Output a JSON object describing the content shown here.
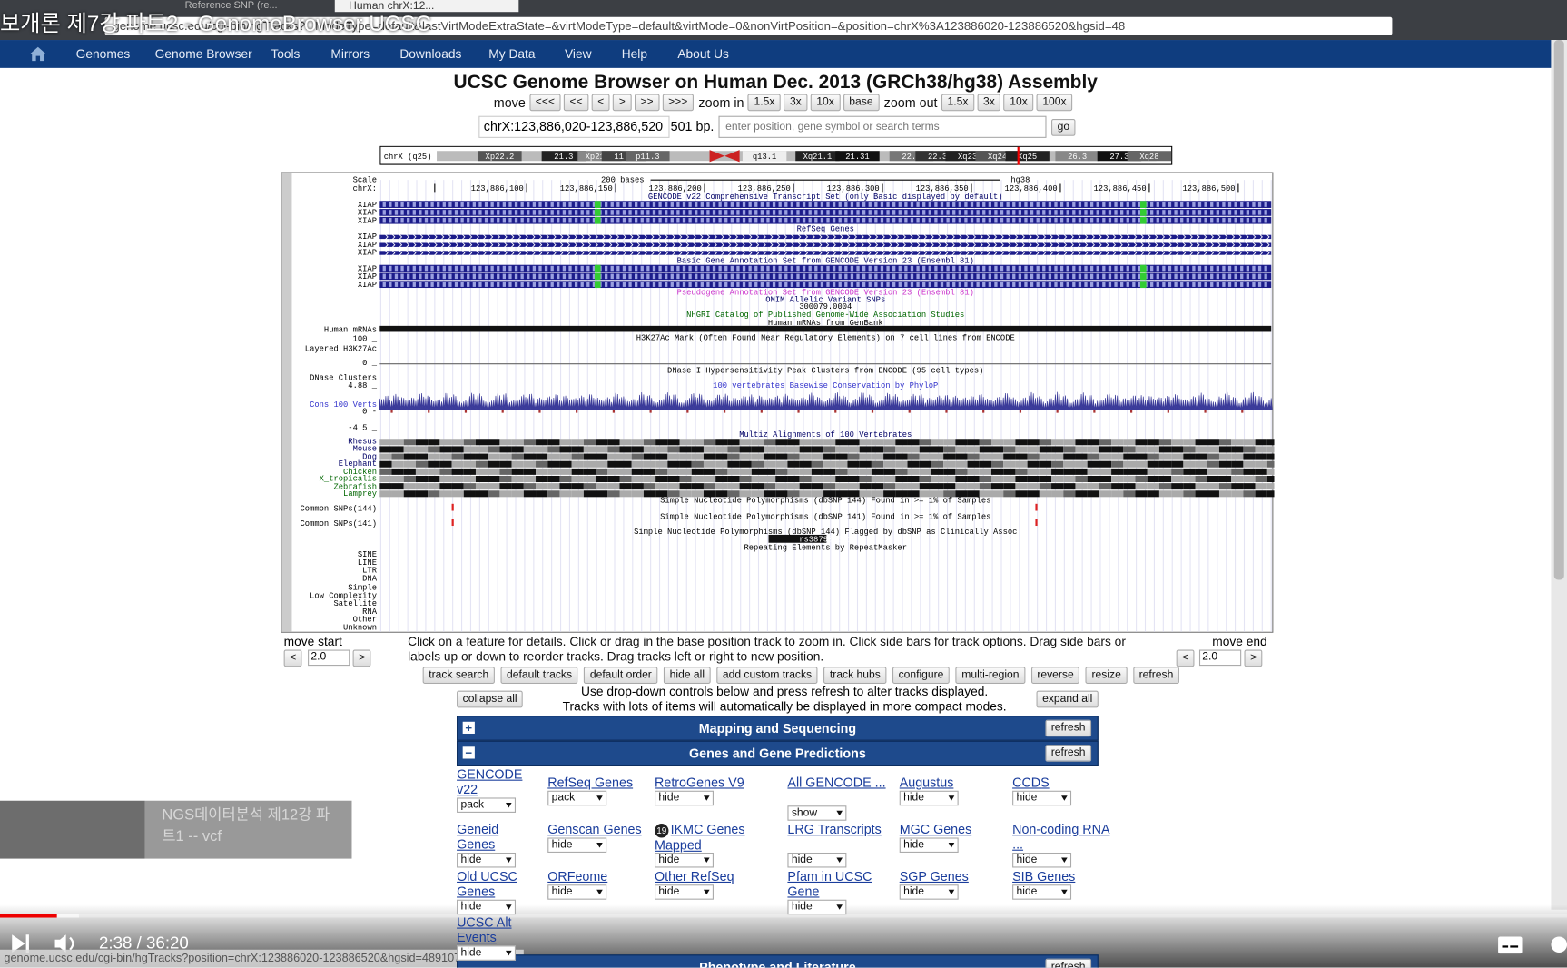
{
  "video_title": "보개론 제7강 파트2 - GenomeBrowser UCSC",
  "browser": {
    "tab": "Human chrX:12...",
    "tab_prev": "Reference SNP (re...",
    "url": "genome.ucsc.edu/cgi-bin/hgTracks?...ModeType=default&lastVirtModeExtraState=&virtModeType=default&virtMode=0&nonVirtPosition=&position=chrX%3A123886020-123886520&hgsid=48",
    "status_url": "genome.ucsc.edu/cgi-bin/hgTracks?position=chrX:123886020-123886520&hgsid=4891075..."
  },
  "nav": [
    "Genomes",
    "Genome Browser",
    "Tools",
    "Mirrors",
    "Downloads",
    "My Data",
    "View",
    "Help",
    "About Us"
  ],
  "heading": "UCSC Genome Browser on Human Dec. 2013 (GRCh38/hg38) Assembly",
  "move": {
    "label": "move",
    "buttons": [
      "<<<",
      "<<",
      "<",
      ">",
      ">>",
      ">>>"
    ]
  },
  "zoom_in": {
    "label": "zoom in",
    "buttons": [
      "1.5x",
      "3x",
      "10x",
      "base"
    ]
  },
  "zoom_out": {
    "label": "zoom out",
    "buttons": [
      "1.5x",
      "3x",
      "10x",
      "100x"
    ]
  },
  "position": "chrX:123,886,020-123,886,520",
  "size": "501 bp.",
  "search_placeholder": "enter position, gene symbol or search terms",
  "go": "go",
  "ideogram": {
    "chrom": "chrX (q25)",
    "bands": [
      "Xp22.2",
      "21.3",
      "Xp21.1",
      "11.4",
      "p11.3",
      "q13.1",
      "Xq21.1",
      "21.31",
      "22.1",
      "22.3",
      "Xq23",
      "Xq24",
      "Xq25",
      "26.3",
      "27.3",
      "Xq28"
    ]
  },
  "tracks": {
    "scale_text": "200 bases",
    "assembly": "hg38",
    "positions": [
      "123,886,100",
      "123,886,150",
      "123,886,200",
      "123,886,250",
      "123,886,300",
      "123,886,350",
      "123,886,400",
      "123,886,450",
      "123,886,500"
    ],
    "left_labels": [
      "Scale",
      "chrX:",
      "XIAP",
      "XIAP",
      "XIAP",
      "XIAP",
      "XIAP",
      "XIAP",
      "XIAP",
      "XIAP",
      "XIAP",
      "Human mRNAs",
      "100 _",
      "Layered H3K27Ac",
      "0 _",
      "DNase Clusters",
      "4.88 _",
      "Cons 100 Verts",
      "0 -",
      "-4.5 _",
      "Rhesus",
      "Mouse",
      "Dog",
      "Elephant",
      "Chicken",
      "X_tropicalis",
      "Zebrafish",
      "Lamprey",
      "Common SNPs(144)",
      "Common SNPs(141)",
      "SINE",
      "LINE",
      "LTR",
      "DNA",
      "Simple",
      "Low Complexity",
      "Satellite",
      "RNA",
      "Other",
      "Unknown"
    ],
    "center_labels": [
      "GENCODE v22 Comprehensive Transcript Set (only Basic displayed by default)",
      "RefSeq Genes",
      "Basic Gene Annotation Set from GENCODE Version 23 (Ensembl 81)",
      "Pseudogene Annotation Set from GENCODE Version 23 (Ensembl 81)",
      "OMIM Allelic Variant SNPs",
      "300079.0004",
      "NHGRI Catalog of Published Genome-Wide Association Studies",
      "Human mRNAs from GenBank",
      "H3K27Ac Mark (Often Found Near Regulatory Elements) on 7 cell lines from ENCODE",
      "DNase I Hypersensitivity Peak Clusters from ENCODE (95 cell types)",
      "100 vertebrates Basewise Conservation by PhyloP",
      "Multiz Alignments of 100 Vertebrates",
      "Simple Nucleotide Polymorphisms (dbSNP 144) Found in >= 1% of Samples",
      "Simple Nucleotide Polymorphisms (dbSNP 141) Found in >= 1% of Samples",
      "Simple Nucleotide Polymorphisms (dbSNP 144) Flagged by dbSNP as Clinically Assoc",
      "rs387907381",
      "Repeating Elements by RepeatMasker"
    ]
  },
  "move_start": {
    "label": "move start",
    "left": "<",
    "value": "2.0",
    "right": ">"
  },
  "move_end": {
    "label": "move end",
    "left": "<",
    "value": "2.0",
    "right": ">"
  },
  "instructions": "Click on a feature for details. Click or drag in the base position track to zoom in. Click side bars for track options. Drag side bars or labels up or down to reorder tracks. Drag tracks left or right to new position.",
  "buttons": [
    "track search",
    "default tracks",
    "default order",
    "hide all",
    "add custom tracks",
    "track hubs",
    "configure",
    "multi-region",
    "reverse",
    "resize",
    "refresh"
  ],
  "collapse_all": "collapse all",
  "expand_all": "expand all",
  "hint": [
    "Use drop-down controls below and press refresh to alter tracks displayed.",
    "Tracks with lots of items will automatically be displayed in more compact modes."
  ],
  "groups": [
    {
      "sign": "+",
      "title": "Mapping and Sequencing",
      "refresh": "refresh"
    },
    {
      "sign": "−",
      "title": "Genes and Gene Predictions",
      "refresh": "refresh"
    },
    {
      "title": "Phenotype and Literature",
      "refresh": "refresh"
    }
  ],
  "track_controls": [
    {
      "name": "GENCODE v22",
      "mode": "pack"
    },
    {
      "name": "RefSeq Genes",
      "mode": "pack"
    },
    {
      "name": "RetroGenes V9",
      "mode": "hide"
    },
    {
      "name": "All GENCODE ...",
      "mode": "show"
    },
    {
      "name": "Augustus",
      "mode": "hide"
    },
    {
      "name": "CCDS",
      "mode": "hide"
    },
    {
      "name": "Geneid Genes",
      "mode": "hide"
    },
    {
      "name": "Genscan Genes",
      "mode": "hide"
    },
    {
      "name": "IKMC Genes Mapped",
      "mode": "hide",
      "badge": "19"
    },
    {
      "name": "LRG Transcripts",
      "mode": "hide"
    },
    {
      "name": "MGC Genes",
      "mode": "hide"
    },
    {
      "name": "Non-coding RNA ...",
      "mode": "hide"
    },
    {
      "name": "Old UCSC Genes",
      "mode": "hide"
    },
    {
      "name": "ORFeome Clones",
      "mode": "hide"
    },
    {
      "name": "Other RefSeq",
      "mode": "hide"
    },
    {
      "name": "Pfam in UCSC Gene",
      "mode": "hide"
    },
    {
      "name": "SGP Genes",
      "mode": "hide"
    },
    {
      "name": "SIB Genes",
      "mode": "hide"
    },
    {
      "name": "UCSC Alt Events",
      "mode": "hide"
    }
  ],
  "overlay_card": "NGS데이터분석 제12강 파트1 -- vcf",
  "player": {
    "time": "2:38 / 36:20"
  }
}
